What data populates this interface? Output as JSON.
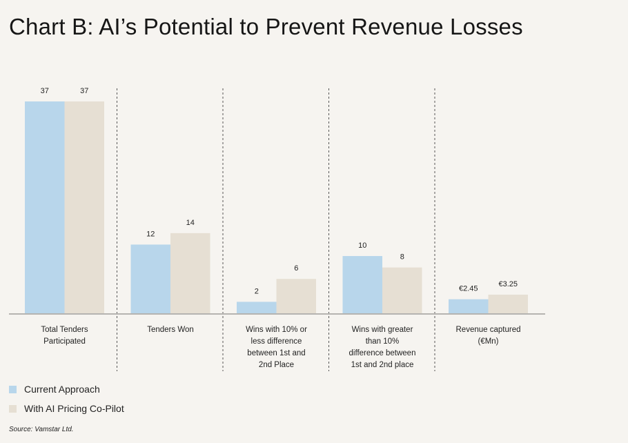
{
  "chart_data": {
    "type": "bar",
    "title": "Chart B: AI’s Potential to Prevent Revenue Losses",
    "xlabel": "",
    "ylabel": "",
    "ylim": [
      0,
      37
    ],
    "grid": false,
    "legend_position": "bottom-left",
    "categories": [
      [
        "Total Tenders",
        "Participated"
      ],
      [
        "Tenders Won"
      ],
      [
        "Wins with 10% or",
        "less difference",
        "between 1st and",
        "2nd Place"
      ],
      [
        "Wins with greater",
        "than 10%",
        "difference between",
        "1st and 2nd place"
      ],
      [
        "Revenue captured",
        "(€Mn)"
      ]
    ],
    "series": [
      {
        "name": "Current Approach",
        "color": "#b8d6eb",
        "values": [
          37,
          12,
          2,
          10,
          2.45
        ],
        "labels": [
          "37",
          "12",
          "2",
          "10",
          "€2.45"
        ]
      },
      {
        "name": "With AI Pricing Co-Pilot",
        "color": "#e6dfd3",
        "values": [
          37,
          14,
          6,
          8,
          3.25
        ],
        "labels": [
          "37",
          "14",
          "6",
          "8",
          "€3.25"
        ]
      }
    ],
    "source": "Source: Vamstar Ltd."
  }
}
